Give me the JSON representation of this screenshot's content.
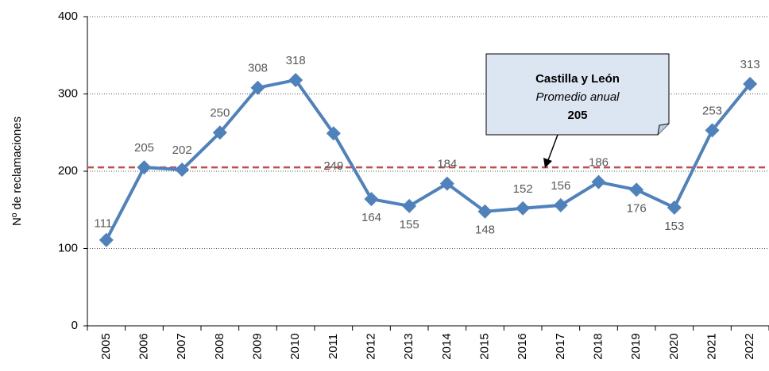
{
  "chart_data": {
    "type": "line",
    "y_axis_label": "Nº de reclamaciones",
    "categories": [
      "2005",
      "2006",
      "2007",
      "2008",
      "2009",
      "2010",
      "2011",
      "2012",
      "2013",
      "2014",
      "2015",
      "2016",
      "2017",
      "2018",
      "2019",
      "2020",
      "2021",
      "2022"
    ],
    "values": [
      111,
      205,
      202,
      250,
      308,
      318,
      249,
      164,
      155,
      184,
      148,
      152,
      156,
      186,
      176,
      153,
      253,
      313
    ],
    "color": "#4f81bd",
    "ylim": [
      0,
      400
    ],
    "yticks": [
      0,
      100,
      200,
      300,
      400
    ],
    "grid": true,
    "average": 205,
    "average_color": "#c0504d",
    "annotation": {
      "title": "Castilla y León",
      "subtitle": "Promedio anual"
    }
  }
}
